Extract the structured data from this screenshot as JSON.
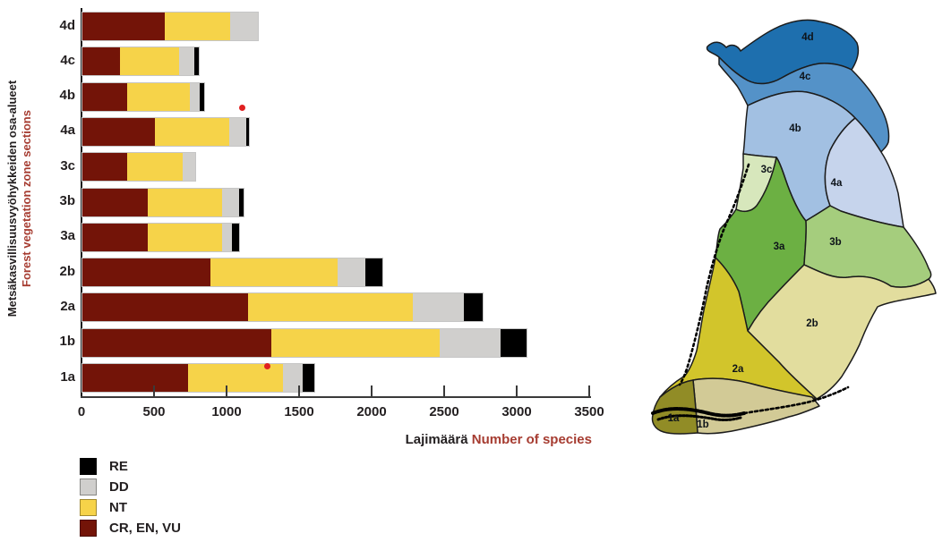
{
  "y_axis_title": {
    "fi": "Metsäkasvillisuusvyöhykkeiden osa-alueet",
    "en": "Forest vegetation zone sections"
  },
  "x_axis_title": {
    "fi": "Lajimäärä",
    "en": "Number of species"
  },
  "legend": {
    "items": [
      {
        "label": "RE",
        "color": "#000000"
      },
      {
        "label": "DD",
        "color": "#d0cfcd"
      },
      {
        "label": "NT",
        "color": "#f6d349"
      },
      {
        "label": "CR, EN, VU",
        "color": "#731408"
      }
    ]
  },
  "chart_data": {
    "type": "bar",
    "orientation": "horizontal",
    "stacked": true,
    "title": "",
    "xlabel": "Lajimäärä / Number of species",
    "ylabel": "Metsäkasvillisuusvyöhykkeiden osa-alueet / Forest vegetation zone sections",
    "categories": [
      "4d",
      "4c",
      "4b",
      "4a",
      "3c",
      "3b",
      "3a",
      "2b",
      "2a",
      "1b",
      "1a"
    ],
    "series": [
      {
        "name": "CR, EN, VU",
        "color": "#731408",
        "values": [
          570,
          260,
          310,
          500,
          310,
          450,
          450,
          880,
          1140,
          1300,
          730
        ]
      },
      {
        "name": "NT",
        "color": "#f6d349",
        "values": [
          450,
          405,
          430,
          510,
          380,
          510,
          510,
          880,
          1140,
          1160,
          650
        ]
      },
      {
        "name": "DD",
        "color": "#d0cfcd",
        "values": [
          190,
          105,
          70,
          120,
          90,
          120,
          70,
          190,
          350,
          420,
          140
        ]
      },
      {
        "name": "RE",
        "color": "#000000",
        "values": [
          0,
          30,
          30,
          20,
          0,
          30,
          50,
          120,
          130,
          180,
          80
        ]
      }
    ],
    "x_ticks": [
      0,
      500,
      1000,
      1500,
      2000,
      2500,
      3000,
      3500
    ],
    "xlim": [
      0,
      3500
    ],
    "grid": false,
    "legend_position": "bottom-left",
    "red_dot_markers": [
      {
        "category": "4b",
        "value": 1110,
        "v_offset": 0.93
      },
      {
        "category": "1a",
        "value": 1280,
        "v_offset": 0.1
      }
    ],
    "red_dot_color": "#e02020"
  },
  "map": {
    "title": "finland-forest-vegetation-zones",
    "outline_color": "#1c1c1c",
    "coast_speckle_color": "#000000",
    "zones": [
      {
        "id": "4d",
        "label": "4d",
        "color": "#1e6fae"
      },
      {
        "id": "4c",
        "label": "4c",
        "color": "#5492c8"
      },
      {
        "id": "4b",
        "label": "4b",
        "color": "#a2c0e2"
      },
      {
        "id": "4a",
        "label": "4a",
        "color": "#c6d4ec"
      },
      {
        "id": "3c",
        "label": "3c",
        "color": "#d7e7bc"
      },
      {
        "id": "3a",
        "label": "3a",
        "color": "#6cb043"
      },
      {
        "id": "3b",
        "label": "3b",
        "color": "#a5cd7d"
      },
      {
        "id": "2b",
        "label": "2b",
        "color": "#e2dd9e"
      },
      {
        "id": "2a",
        "label": "2a",
        "color": "#d2c52b"
      },
      {
        "id": "1b",
        "label": "1b",
        "color": "#d2ca96"
      },
      {
        "id": "1a",
        "label": "1a",
        "color": "#918c26"
      }
    ]
  },
  "text_colors": {
    "primary": "#231f20",
    "accent_red": "#a63c31"
  }
}
